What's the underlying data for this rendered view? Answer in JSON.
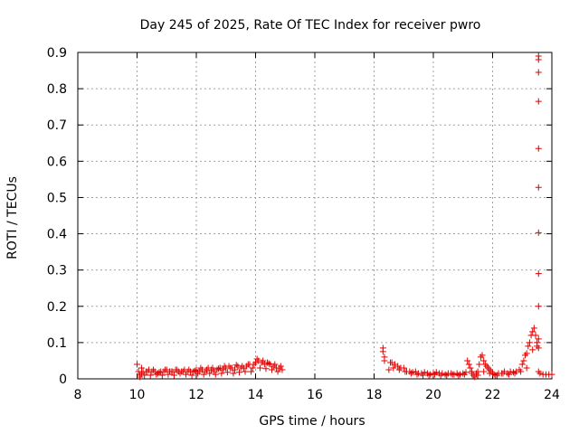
{
  "chart_data": {
    "type": "scatter",
    "title": "Day 245 of 2025, Rate Of TEC Index for receiver pwro",
    "xlabel": "GPS time / hours",
    "ylabel": "ROTI / TECUs",
    "xlim": [
      8,
      24
    ],
    "ylim": [
      0,
      0.9
    ],
    "xticks": [
      "8",
      "10",
      "12",
      "14",
      "16",
      "18",
      "20",
      "22",
      "24"
    ],
    "yticks": [
      "0",
      "0.1",
      "0.2",
      "0.3",
      "0.4",
      "0.5",
      "0.6",
      "0.7",
      "0.8",
      "0.9"
    ],
    "grid": true,
    "marker": "+",
    "color": "#e00000",
    "series": [
      {
        "x": [
          10.0,
          10.05,
          10.1,
          10.15,
          10.2,
          10.3,
          10.4,
          10.5,
          10.6,
          10.7,
          10.8,
          10.9,
          11.0,
          11.1,
          11.2,
          11.3,
          11.4,
          11.5,
          11.6,
          11.7,
          11.8,
          11.9,
          12.0,
          12.1,
          12.2,
          12.3,
          12.4,
          12.5,
          12.6,
          12.7,
          12.8,
          12.9,
          13.0,
          13.1,
          13.2,
          13.3,
          13.4,
          13.5,
          13.6,
          13.7,
          13.8,
          13.9,
          14.0,
          14.05,
          14.1,
          14.2,
          14.3,
          14.4,
          14.5,
          14.6,
          14.7,
          14.8,
          14.9,
          10.1,
          10.25,
          10.45,
          10.65,
          10.85,
          11.05,
          11.25,
          11.45,
          11.65,
          11.85,
          12.05,
          12.25,
          12.45,
          12.65,
          12.85,
          13.05,
          13.25,
          13.45,
          13.65,
          13.85,
          14.15,
          14.35,
          14.55,
          14.75,
          10.15,
          10.35,
          10.55,
          10.75,
          10.95,
          11.15,
          11.35,
          11.55,
          11.75,
          11.95,
          12.15,
          12.35,
          12.55,
          12.75,
          12.95,
          13.15,
          13.35,
          13.55,
          13.75,
          13.95,
          14.25,
          14.45,
          14.65,
          14.85
        ],
        "y": [
          0.04,
          0.02,
          0.01,
          0.015,
          0.02,
          0.02,
          0.025,
          0.02,
          0.02,
          0.015,
          0.02,
          0.02,
          0.025,
          0.02,
          0.02,
          0.025,
          0.02,
          0.02,
          0.025,
          0.02,
          0.02,
          0.02,
          0.025,
          0.02,
          0.025,
          0.02,
          0.03,
          0.025,
          0.02,
          0.025,
          0.03,
          0.025,
          0.03,
          0.035,
          0.03,
          0.025,
          0.035,
          0.03,
          0.03,
          0.035,
          0.04,
          0.03,
          0.045,
          0.055,
          0.05,
          0.045,
          0.04,
          0.045,
          0.04,
          0.035,
          0.03,
          0.03,
          0.025,
          0.005,
          0.01,
          0.01,
          0.012,
          0.01,
          0.012,
          0.01,
          0.015,
          0.012,
          0.01,
          0.015,
          0.012,
          0.015,
          0.012,
          0.015,
          0.018,
          0.015,
          0.018,
          0.02,
          0.02,
          0.03,
          0.028,
          0.025,
          0.02,
          0.03,
          0.02,
          0.025,
          0.018,
          0.025,
          0.02,
          0.025,
          0.02,
          0.025,
          0.022,
          0.03,
          0.025,
          0.03,
          0.028,
          0.035,
          0.03,
          0.038,
          0.035,
          0.04,
          0.04,
          0.05,
          0.042,
          0.04,
          0.035
        ]
      },
      {
        "x": [
          18.3,
          18.3,
          18.35,
          18.35,
          18.5,
          18.55,
          18.6,
          18.7,
          18.8,
          18.9,
          19.0,
          19.1,
          19.2,
          19.3,
          19.4,
          19.5,
          19.6,
          19.7,
          19.8,
          19.9,
          20.0,
          20.1,
          20.2,
          20.3,
          20.4,
          20.5,
          20.6,
          20.7,
          20.8,
          20.9,
          21.0,
          21.1,
          21.15,
          21.2,
          21.25,
          21.3,
          21.35,
          21.4,
          21.45,
          21.5,
          21.55,
          21.6,
          21.65,
          21.7,
          21.75,
          21.8,
          21.85,
          21.9,
          21.95,
          22.0,
          22.05,
          22.1,
          22.2,
          22.3,
          22.4,
          22.5,
          22.6,
          22.7,
          22.8,
          22.9,
          23.0,
          23.05,
          23.1,
          23.15,
          23.2,
          23.25,
          23.3,
          23.35,
          23.4,
          23.45,
          23.5,
          23.55,
          23.6,
          23.7,
          23.8,
          23.9,
          24.0,
          18.65,
          18.85,
          19.05,
          19.25,
          19.45,
          19.65,
          19.85,
          20.05,
          20.25,
          20.45,
          20.65,
          20.85,
          21.05,
          21.3,
          21.5,
          21.7,
          21.9,
          22.15,
          22.35,
          22.55,
          22.75,
          22.95,
          23.15,
          23.35,
          23.5,
          23.55,
          23.55,
          23.55,
          23.55,
          23.55,
          23.55,
          23.55,
          23.55,
          23.55,
          23.55,
          23.55
        ],
        "y": [
          0.085,
          0.075,
          0.06,
          0.05,
          0.025,
          0.045,
          0.045,
          0.04,
          0.035,
          0.03,
          0.03,
          0.02,
          0.02,
          0.018,
          0.02,
          0.015,
          0.015,
          0.018,
          0.015,
          0.012,
          0.015,
          0.018,
          0.015,
          0.015,
          0.012,
          0.015,
          0.015,
          0.012,
          0.015,
          0.012,
          0.015,
          0.018,
          0.05,
          0.04,
          0.03,
          0.02,
          0.01,
          0.005,
          0.015,
          0.02,
          0.04,
          0.06,
          0.065,
          0.05,
          0.04,
          0.035,
          0.03,
          0.025,
          0.02,
          0.015,
          0.012,
          0.01,
          0.015,
          0.015,
          0.02,
          0.015,
          0.02,
          0.018,
          0.02,
          0.025,
          0.04,
          0.05,
          0.065,
          0.07,
          0.09,
          0.1,
          0.12,
          0.13,
          0.14,
          0.12,
          0.1,
          0.02,
          0.015,
          0.012,
          0.012,
          0.012,
          0.012,
          0.03,
          0.025,
          0.02,
          0.015,
          0.012,
          0.01,
          0.01,
          0.012,
          0.01,
          0.01,
          0.012,
          0.01,
          0.012,
          0.015,
          0.01,
          0.02,
          0.015,
          0.01,
          0.015,
          0.012,
          0.015,
          0.02,
          0.03,
          0.08,
          0.09,
          0.89,
          0.88,
          0.845,
          0.765,
          0.635,
          0.528,
          0.403,
          0.29,
          0.2,
          0.11,
          0.085
        ]
      }
    ]
  }
}
